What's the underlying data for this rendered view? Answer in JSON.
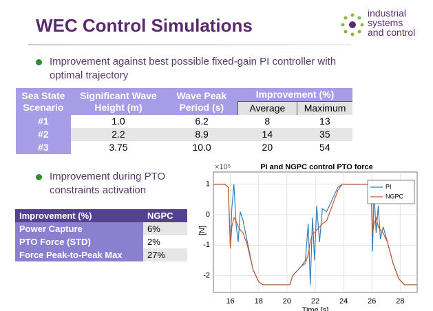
{
  "header": {
    "title": "WEC Control Simulations",
    "logo": [
      "industrial",
      "systems",
      "and control"
    ]
  },
  "bullet_1": "Improvement  against  best possible fixed-gain PI controller with optimal trajectory",
  "table_1": {
    "header": [
      "Sea State Scenario",
      "Significant Wave Height (m)",
      "Wave Peak Period (s)",
      "Improvement (%)"
    ],
    "subheader": [
      "Average",
      "Maximum"
    ],
    "rows": [
      [
        "#1",
        "1.0",
        "6.2",
        "8",
        "13"
      ],
      [
        "#2",
        "2.2",
        "8.9",
        "14",
        "35"
      ],
      [
        "#3",
        "3.75",
        "10.0",
        "20",
        "54"
      ]
    ]
  },
  "bullet_2": "Improvement during PTO constraints activation",
  "table_2": {
    "header": [
      "Improvement (%)",
      "NGPC"
    ],
    "rows": [
      [
        "Power Capture",
        "6%"
      ],
      [
        "PTO Force (STD)",
        "2%"
      ],
      [
        "Force Peak-to-Peak Max",
        "27%"
      ]
    ]
  },
  "chart_data": {
    "type": "line",
    "title": "PI and NGPC control PTO force",
    "y_exponent": "×10⁵",
    "y_label": "[N]",
    "x_label": "Time [s]",
    "x": [
      14.8,
      15.6,
      15.85,
      16.0,
      16.1,
      16.25,
      16.4,
      16.55,
      16.7,
      16.9,
      17.2,
      17.6,
      18.0,
      18.3,
      20.2,
      20.4,
      21.0,
      21.3,
      21.5,
      21.65,
      21.8,
      21.95,
      22.1,
      22.3,
      22.5,
      22.8,
      23.2,
      23.6,
      23.9,
      25.8,
      25.95,
      26.05,
      26.15,
      26.3,
      26.45,
      26.6,
      26.8,
      27.1,
      27.5,
      27.9,
      28.3,
      29.2
    ],
    "series": [
      {
        "name": "PI",
        "color": "#2f7fbf",
        "values": [
          1,
          1,
          0.9,
          -1.1,
          0.2,
          1.0,
          -0.3,
          -0.9,
          0.1,
          -0.2,
          -0.9,
          -1.8,
          -2.2,
          -2.3,
          -2.3,
          -2.0,
          -1.7,
          -1.5,
          -0.3,
          -2.3,
          -0.1,
          -1.5,
          0.3,
          -0.9,
          0.2,
          0.1,
          0.5,
          0.9,
          1,
          1,
          0.9,
          -1.2,
          0.8,
          -0.6,
          0.3,
          -0.8,
          -0.4,
          -0.9,
          -1.6,
          -2.1,
          -2.3,
          -2.3
        ]
      },
      {
        "name": "NGPC",
        "color": "#c9552b",
        "values": [
          1,
          1,
          0.9,
          -1.1,
          -0.4,
          -0.1,
          -0.2,
          -0.4,
          -0.5,
          -0.6,
          -1.0,
          -1.8,
          -2.2,
          -2.3,
          -2.3,
          -2.0,
          -1.7,
          -1.6,
          -1.3,
          -0.9,
          -0.6,
          -0.6,
          -0.5,
          -0.4,
          -0.3,
          -0.2,
          0.3,
          0.8,
          1,
          1,
          0.9,
          -0.6,
          -0.3,
          -0.1,
          -0.4,
          -0.5,
          -0.6,
          -0.9,
          -1.6,
          -2.1,
          -2.3,
          -2.3
        ]
      }
    ],
    "xlim": [
      14.8,
      29.2
    ],
    "ylim": [
      -2.55,
      1.4
    ],
    "xticks": [
      16,
      18,
      20,
      22,
      24,
      26,
      28
    ],
    "yticks": [
      -2,
      -1,
      0,
      1
    ],
    "grid": true,
    "legend": "top-right"
  }
}
